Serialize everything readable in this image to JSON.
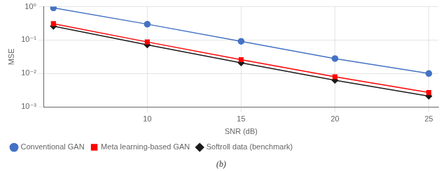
{
  "chart_data": {
    "type": "line",
    "xlabel": "SNR (dB)",
    "ylabel": "MSE",
    "annotation": "(b)",
    "x": [
      5,
      10,
      15,
      20,
      25
    ],
    "series": [
      {
        "name": "Conventional GAN",
        "color": "#4472C4",
        "marker": "circle",
        "values": [
          0.92,
          0.3,
          0.092,
          0.028,
          0.01
        ]
      },
      {
        "name": "Meta learning-based GAN",
        "color": "#FF0000",
        "marker": "square",
        "values": [
          0.31,
          0.088,
          0.026,
          0.008,
          0.0027
        ]
      },
      {
        "name": "Softroll data (benchmark)",
        "color": "#1A1A1A",
        "marker": "diamond",
        "values": [
          0.26,
          0.072,
          0.021,
          0.0063,
          0.0021
        ]
      }
    ],
    "log": "y",
    "grid": true,
    "legend": "lower left",
    "xlim": [
      4.5,
      25.5
    ],
    "xticks": [
      10,
      15,
      20,
      25
    ],
    "ylim": [
      0.001,
      1
    ],
    "yticks": [
      {
        "value": 0.001,
        "label": "10⁻³"
      },
      {
        "value": 0.01,
        "label": "10⁻²"
      },
      {
        "value": 0.1,
        "label": "10⁻¹"
      },
      {
        "value": 1,
        "label": "10⁰"
      }
    ]
  }
}
